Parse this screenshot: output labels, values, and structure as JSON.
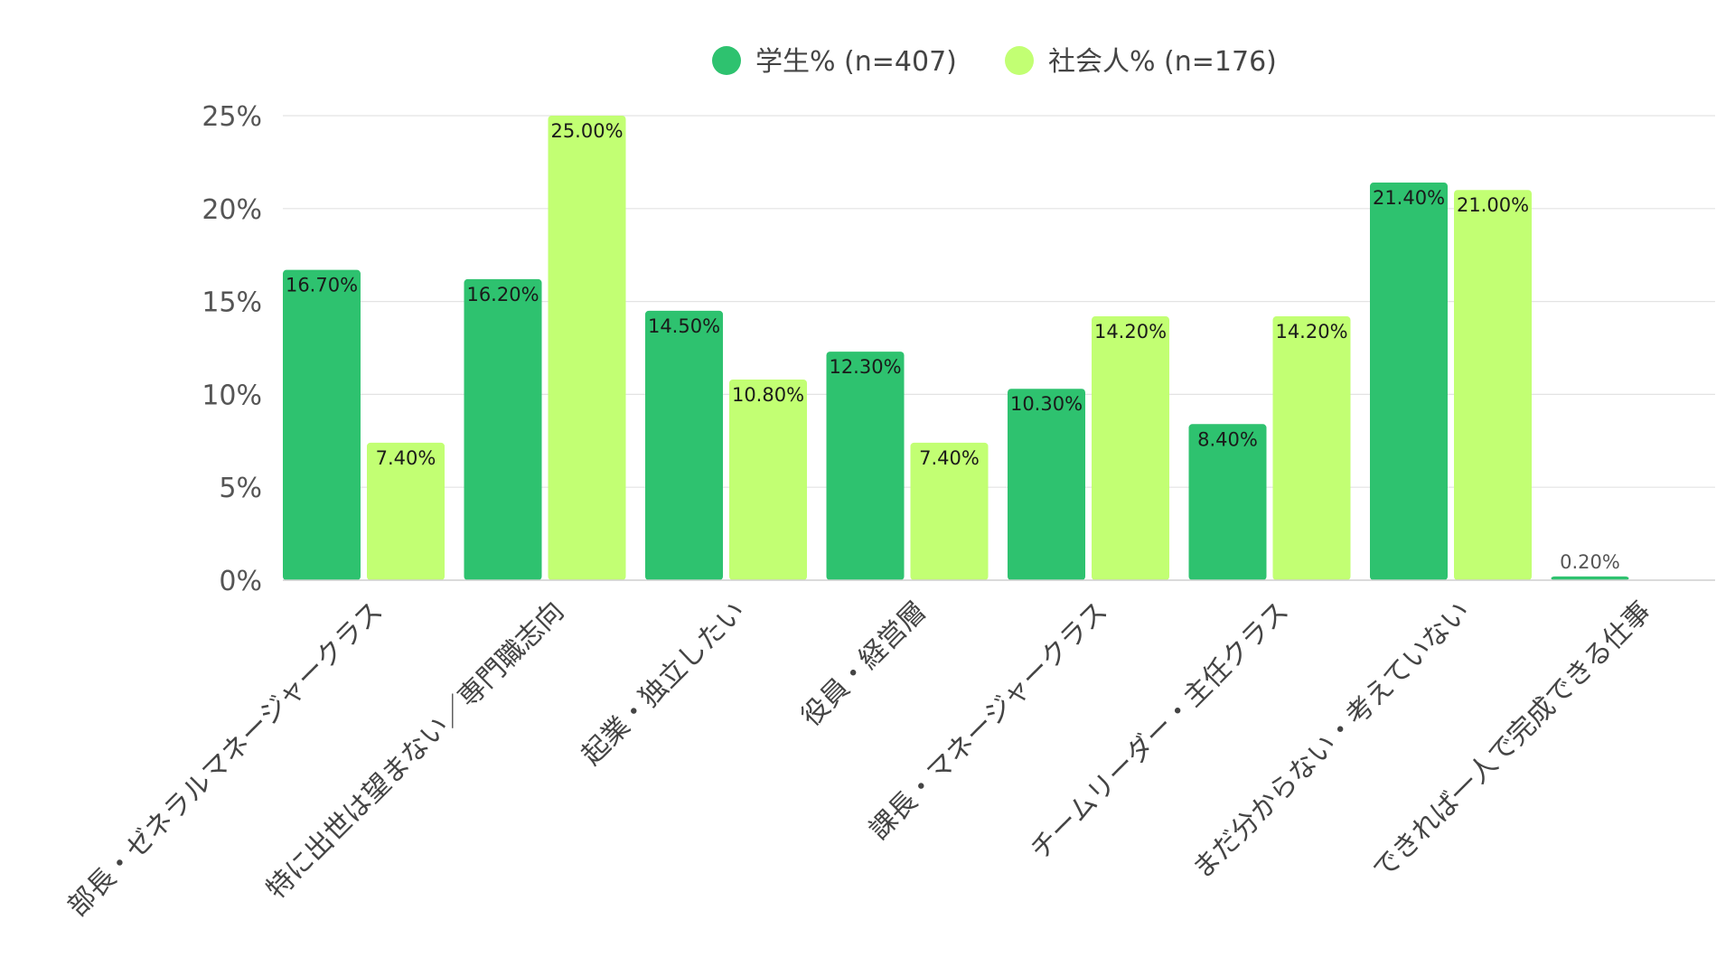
{
  "chart_data": {
    "type": "bar",
    "title": "",
    "xlabel": "",
    "ylabel": "",
    "ylim": [
      0,
      25
    ],
    "y_ticks": [
      0,
      5,
      10,
      15,
      20,
      25
    ],
    "y_tick_labels": [
      "0%",
      "5%",
      "10%",
      "15%",
      "20%",
      "25%"
    ],
    "grid": true,
    "legend_position": "top-center",
    "categories": [
      "部長・ゼネラルマネージャークラス",
      "特に出世は望まない／専門職志向",
      "起業・独立したい",
      "役員・経営層",
      "課長・マネージャークラス",
      "チームリーダー・主任クラス",
      "まだ分からない・考えていない",
      "できれば一人で完成できる仕事"
    ],
    "series": [
      {
        "name": "学生% (n=407)",
        "color": "#2ec26f",
        "values": [
          16.7,
          16.2,
          14.5,
          12.3,
          10.3,
          8.4,
          21.4,
          0.2
        ],
        "labels": [
          "16.70%",
          "16.20%",
          "14.50%",
          "12.30%",
          "10.30%",
          "8.40%",
          "21.40%",
          "0.20%"
        ]
      },
      {
        "name": "社会人% (n=176)",
        "color": "#c2ff73",
        "values": [
          7.4,
          25.0,
          10.8,
          7.4,
          14.2,
          14.2,
          21.0,
          null
        ],
        "labels": [
          "7.40%",
          "25.00%",
          "10.80%",
          "7.40%",
          "14.20%",
          "14.20%",
          "21.00%",
          null
        ]
      }
    ]
  }
}
